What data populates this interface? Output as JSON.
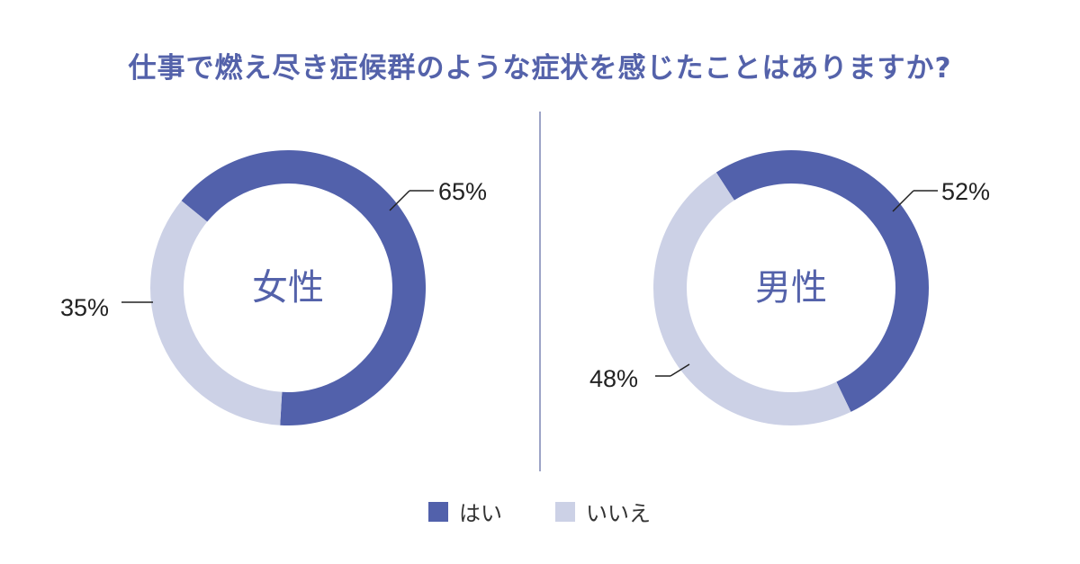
{
  "title": "仕事で燃え尽き症候群のような症状を感じたことはありますか?",
  "colors": {
    "yes": "#5261ab",
    "no": "#ccd1e6"
  },
  "legend": [
    {
      "label": "はい",
      "color": "#5261ab"
    },
    {
      "label": "いいえ",
      "color": "#ccd1e6"
    }
  ],
  "chart_data": [
    {
      "type": "pie",
      "center_label": "女性",
      "categories": [
        "はい",
        "いいえ"
      ],
      "values": [
        65,
        35
      ],
      "labels": [
        "65%",
        "35%"
      ]
    },
    {
      "type": "pie",
      "center_label": "男性",
      "categories": [
        "はい",
        "いいえ"
      ],
      "values": [
        52,
        48
      ],
      "labels": [
        "52%",
        "48%"
      ]
    }
  ]
}
